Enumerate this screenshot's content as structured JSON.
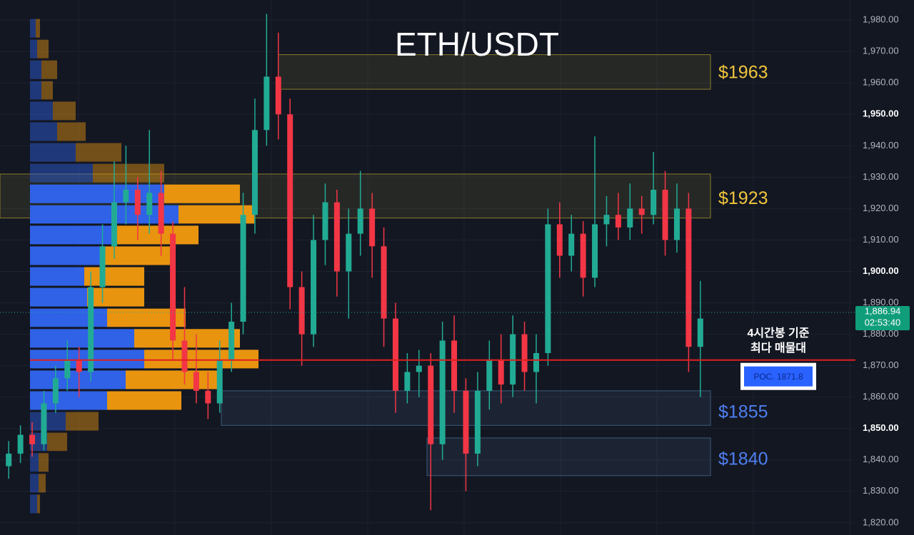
{
  "chart_data": {
    "type": "candlestick",
    "title": "ETH/USDT",
    "ylim": [
      1816.1,
      1986.4
    ],
    "yticks": [
      {
        "value": 1980,
        "label": "1,980.00"
      },
      {
        "value": 1970,
        "label": "1,970.00"
      },
      {
        "value": 1960,
        "label": "1,960.00"
      },
      {
        "value": 1950,
        "label": "1,950.00"
      },
      {
        "value": 1940,
        "label": "1,940.00"
      },
      {
        "value": 1930,
        "label": "1,930.00"
      },
      {
        "value": 1920,
        "label": "1,920.00"
      },
      {
        "value": 1910,
        "label": "1,910.00"
      },
      {
        "value": 1900,
        "label": "1,900.00"
      },
      {
        "value": 1890,
        "label": "1,890.00"
      },
      {
        "value": 1880,
        "label": "1,880.00"
      },
      {
        "value": 1870,
        "label": "1,870.00"
      },
      {
        "value": 1860,
        "label": "1,860.00"
      },
      {
        "value": 1850,
        "label": "1,850.00"
      },
      {
        "value": 1840,
        "label": "1,840.00"
      },
      {
        "value": 1830,
        "label": "1,830.00"
      },
      {
        "value": 1820,
        "label": "1,820.00"
      }
    ],
    "grid": true,
    "up_color": "#22ab94",
    "down_color": "#f23645",
    "ohlc": [
      [
        1838,
        1846,
        1834,
        1842
      ],
      [
        1842,
        1851,
        1839,
        1848
      ],
      [
        1848,
        1852,
        1841,
        1845
      ],
      [
        1845,
        1862,
        1843,
        1858
      ],
      [
        1858,
        1870,
        1855,
        1866
      ],
      [
        1866,
        1878,
        1862,
        1872
      ],
      [
        1872,
        1876,
        1860,
        1868
      ],
      [
        1868,
        1900,
        1865,
        1895
      ],
      [
        1895,
        1915,
        1890,
        1908
      ],
      [
        1908,
        1935,
        1904,
        1922
      ],
      [
        1922,
        1940,
        1915,
        1926
      ],
      [
        1926,
        1930,
        1910,
        1918
      ],
      [
        1918,
        1945,
        1912,
        1925
      ],
      [
        1925,
        1932,
        1905,
        1912
      ],
      [
        1912,
        1916,
        1872,
        1878
      ],
      [
        1878,
        1895,
        1864,
        1868
      ],
      [
        1868,
        1880,
        1858,
        1862
      ],
      [
        1862,
        1868,
        1853,
        1858
      ],
      [
        1858,
        1878,
        1855,
        1872
      ],
      [
        1872,
        1890,
        1868,
        1884
      ],
      [
        1884,
        1925,
        1880,
        1918
      ],
      [
        1918,
        1955,
        1912,
        1945
      ],
      [
        1945,
        1982,
        1940,
        1962
      ],
      [
        1962,
        1976,
        1942,
        1950
      ],
      [
        1950,
        1955,
        1888,
        1895
      ],
      [
        1895,
        1900,
        1870,
        1880
      ],
      [
        1880,
        1918,
        1876,
        1910
      ],
      [
        1910,
        1928,
        1902,
        1922
      ],
      [
        1922,
        1926,
        1892,
        1900
      ],
      [
        1900,
        1920,
        1885,
        1912
      ],
      [
        1912,
        1932,
        1905,
        1920
      ],
      [
        1920,
        1925,
        1898,
        1908
      ],
      [
        1908,
        1914,
        1876,
        1885
      ],
      [
        1885,
        1890,
        1855,
        1862
      ],
      [
        1862,
        1874,
        1858,
        1868
      ],
      [
        1868,
        1875,
        1860,
        1870
      ],
      [
        1870,
        1874,
        1824,
        1845
      ],
      [
        1845,
        1884,
        1840,
        1878
      ],
      [
        1878,
        1886,
        1855,
        1862
      ],
      [
        1862,
        1866,
        1830,
        1842
      ],
      [
        1842,
        1868,
        1838,
        1862
      ],
      [
        1862,
        1878,
        1856,
        1872
      ],
      [
        1872,
        1880,
        1858,
        1864
      ],
      [
        1864,
        1886,
        1860,
        1880
      ],
      [
        1880,
        1884,
        1862,
        1868
      ],
      [
        1868,
        1880,
        1858,
        1874
      ],
      [
        1874,
        1920,
        1870,
        1915
      ],
      [
        1915,
        1922,
        1898,
        1905
      ],
      [
        1905,
        1918,
        1900,
        1912
      ],
      [
        1912,
        1916,
        1892,
        1898
      ],
      [
        1898,
        1943,
        1895,
        1915
      ],
      [
        1915,
        1924,
        1908,
        1918
      ],
      [
        1918,
        1925,
        1910,
        1914
      ],
      [
        1914,
        1928,
        1910,
        1920
      ],
      [
        1920,
        1924,
        1912,
        1918
      ],
      [
        1918,
        1938,
        1915,
        1926
      ],
      [
        1926,
        1932,
        1905,
        1910
      ],
      [
        1910,
        1928,
        1906,
        1920
      ],
      [
        1920,
        1925,
        1868,
        1876
      ],
      [
        1876,
        1897,
        1860,
        1885
      ]
    ],
    "volume_profile": {
      "bins": [
        1980.7,
        1974.1,
        1967.5,
        1960.9,
        1954.4,
        1947.8,
        1941.2,
        1934.6,
        1928.0,
        1921.4,
        1914.9,
        1908.3,
        1901.7,
        1895.1,
        1888.5,
        1882.0,
        1875.4,
        1868.8,
        1862.2,
        1855.6,
        1849.0,
        1842.5,
        1835.9,
        1829.3,
        1822.7
      ],
      "buy": [
        8,
        10,
        16,
        16,
        32,
        38,
        64,
        88,
        188,
        208,
        120,
        104,
        76,
        80,
        108,
        146,
        160,
        134,
        108,
        50,
        24,
        12,
        12,
        10
      ],
      "sell": [
        6,
        16,
        22,
        16,
        32,
        40,
        64,
        100,
        106,
        106,
        116,
        92,
        84,
        80,
        110,
        148,
        160,
        128,
        104,
        46,
        28,
        14,
        10,
        4
      ],
      "buy_color": "#2f62e6",
      "sell_color": "#e8940f",
      "value_area": [
        1855.6,
        1928.0
      ]
    },
    "zones": [
      {
        "label": "$1963",
        "value": 1963,
        "top": 1969,
        "bottom": 1958,
        "color": "#f0c53c"
      },
      {
        "label": "$1923",
        "value": 1923,
        "top": 1931,
        "bottom": 1917,
        "color": "#f0c53c"
      },
      {
        "label": "$1855",
        "value": 1855,
        "top": 1862,
        "bottom": 1851,
        "color": "#4e7ff0"
      },
      {
        "label": "$1840",
        "value": 1840,
        "top": 1847,
        "bottom": 1835,
        "color": "#4e7ff0"
      }
    ],
    "poc": {
      "value": 1871.8,
      "label": "POC. 1871.8",
      "color": "#e01f1f"
    },
    "annotation": [
      "4시간봉 기준",
      "최다 매물대"
    ],
    "last_price": {
      "value": 1886.94,
      "label": "1,886.94"
    },
    "countdown": "02:53:40"
  }
}
